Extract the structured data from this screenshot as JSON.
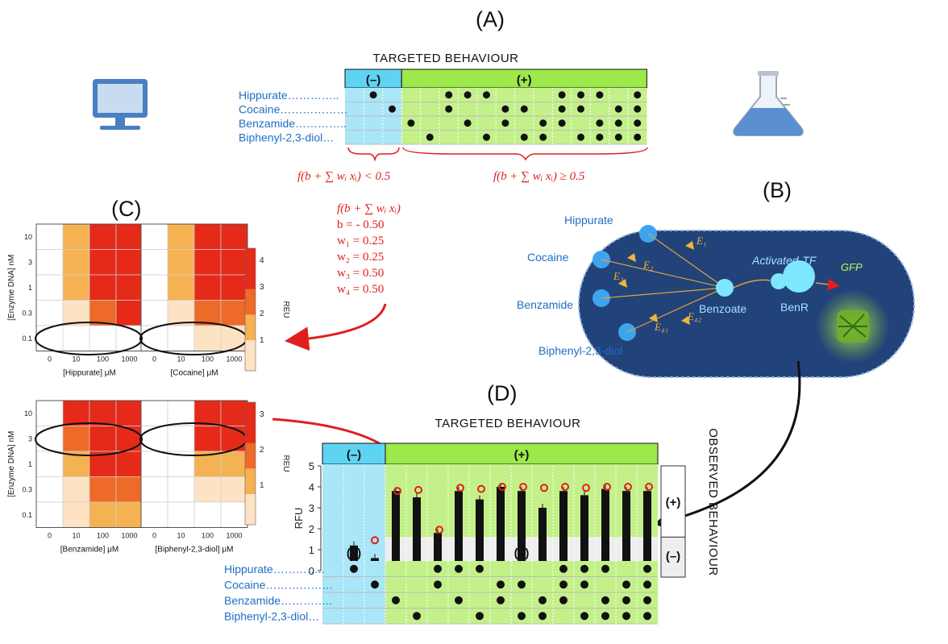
{
  "panels": {
    "a": "(A)",
    "b": "(B)",
    "c": "(C)",
    "d": "(D)"
  },
  "targeted_title": "TARGETED BEHAVIOUR",
  "neg_label": "(–)",
  "pos_label": "(+)",
  "compounds": [
    "Hippurate",
    "Cocaine",
    "Benzamide",
    "Biphenyl-2,3-diol"
  ],
  "compound_labels": [
    "Hippurate…………..",
    "Cocaine………………",
    "Benzamide…………..",
    "Biphenyl-2,3-diol…"
  ],
  "truth_table": {
    "columns": [
      [
        0,
        0,
        0,
        0
      ],
      [
        1,
        0,
        0,
        0
      ],
      [
        0,
        1,
        0,
        0
      ],
      [
        0,
        0,
        1,
        0
      ],
      [
        0,
        0,
        0,
        1
      ],
      [
        1,
        1,
        0,
        0
      ],
      [
        1,
        0,
        1,
        0
      ],
      [
        1,
        0,
        0,
        1
      ],
      [
        0,
        1,
        1,
        0
      ],
      [
        0,
        1,
        0,
        1
      ],
      [
        0,
        0,
        1,
        1
      ],
      [
        1,
        1,
        1,
        0
      ],
      [
        1,
        1,
        0,
        1
      ],
      [
        1,
        0,
        1,
        1
      ],
      [
        0,
        1,
        1,
        1
      ],
      [
        1,
        1,
        1,
        1
      ]
    ],
    "n_negative": 3
  },
  "formula": {
    "lt": "f(b + ∑ wᵢ xᵢ) < 0.5",
    "ge": "f(b + ∑ wᵢ xᵢ) ≥ 0.5",
    "expr": "f(b + ∑ wᵢ xᵢ)",
    "params": [
      "b = - 0.50",
      "w₁ =  0.25",
      "w₂ =  0.25",
      "w₃ =  0.50",
      "w₄ =  0.50"
    ]
  },
  "cell": {
    "activated_tf": "Activated-TF",
    "gfp": "GFP",
    "benzoate": "Benzoate",
    "benr": "BenR",
    "enzymes": [
      "E₁",
      "E₂",
      "E₃",
      "E₄₂",
      "E₄₁"
    ],
    "inputs": [
      "Hippurate",
      "Cocaine",
      "Benzamide",
      "Biphenyl-2,3-diol"
    ]
  },
  "heatmaps": {
    "y_ticks": [
      "10",
      "3",
      "1",
      "0.3",
      "0.1"
    ],
    "x_ticks": [
      "0",
      "10",
      "100",
      "1000"
    ],
    "y_label": "[Enzyme DNA] nM",
    "colorbar_label": "REU",
    "top_cb_ticks": [
      "4",
      "3",
      "2",
      "1"
    ],
    "bottom_cb_ticks": [
      "3",
      "2",
      "1"
    ],
    "maps": [
      {
        "xlabel": "[Hippurate] μM",
        "values": [
          [
            0,
            2,
            4,
            4
          ],
          [
            0,
            2,
            4,
            4
          ],
          [
            0,
            2,
            4,
            4
          ],
          [
            0,
            1,
            3,
            4
          ],
          [
            0,
            0,
            0,
            0
          ]
        ]
      },
      {
        "xlabel": "[Cocaine] μM",
        "values": [
          [
            0,
            2,
            4,
            4
          ],
          [
            0,
            2,
            4,
            4
          ],
          [
            0,
            2,
            4,
            4
          ],
          [
            0,
            1,
            3,
            3
          ],
          [
            0,
            0,
            1,
            1
          ]
        ]
      },
      {
        "xlabel": "[Benzamide] μM",
        "values": [
          [
            0,
            4,
            4,
            4
          ],
          [
            0,
            3,
            4,
            4
          ],
          [
            0,
            2,
            4,
            4
          ],
          [
            0,
            1,
            3,
            3
          ],
          [
            0,
            1,
            2,
            2
          ]
        ]
      },
      {
        "xlabel": "[Biphenyl-2,3-diol] μM",
        "values": [
          [
            0,
            0,
            4,
            4
          ],
          [
            0,
            0,
            4,
            4
          ],
          [
            0,
            0,
            2,
            2
          ],
          [
            0,
            0,
            1,
            1
          ],
          [
            0,
            0,
            0,
            0
          ]
        ]
      }
    ]
  },
  "chart_data": {
    "type": "bar",
    "ylabel": "RFU",
    "ylim": [
      0,
      5
    ],
    "y_ticks": [
      "5",
      "4",
      "3",
      "2",
      "1",
      "0"
    ],
    "threshold": 1.6,
    "observed_label": "OBSERVED BEHAVIOUR",
    "observed": [
      0.1,
      1.2,
      0.6,
      3.8,
      3.5,
      1.8,
      3.8,
      3.4,
      4.0,
      3.8,
      3.0,
      3.8,
      3.6,
      3.9,
      3.8,
      3.8
    ],
    "predicted": [
      0.1,
      0.3,
      1.45,
      3.8,
      3.85,
      1.95,
      3.95,
      3.9,
      4.0,
      4.0,
      3.95,
      4.0,
      3.95,
      4.0,
      4.0,
      4.0
    ]
  }
}
